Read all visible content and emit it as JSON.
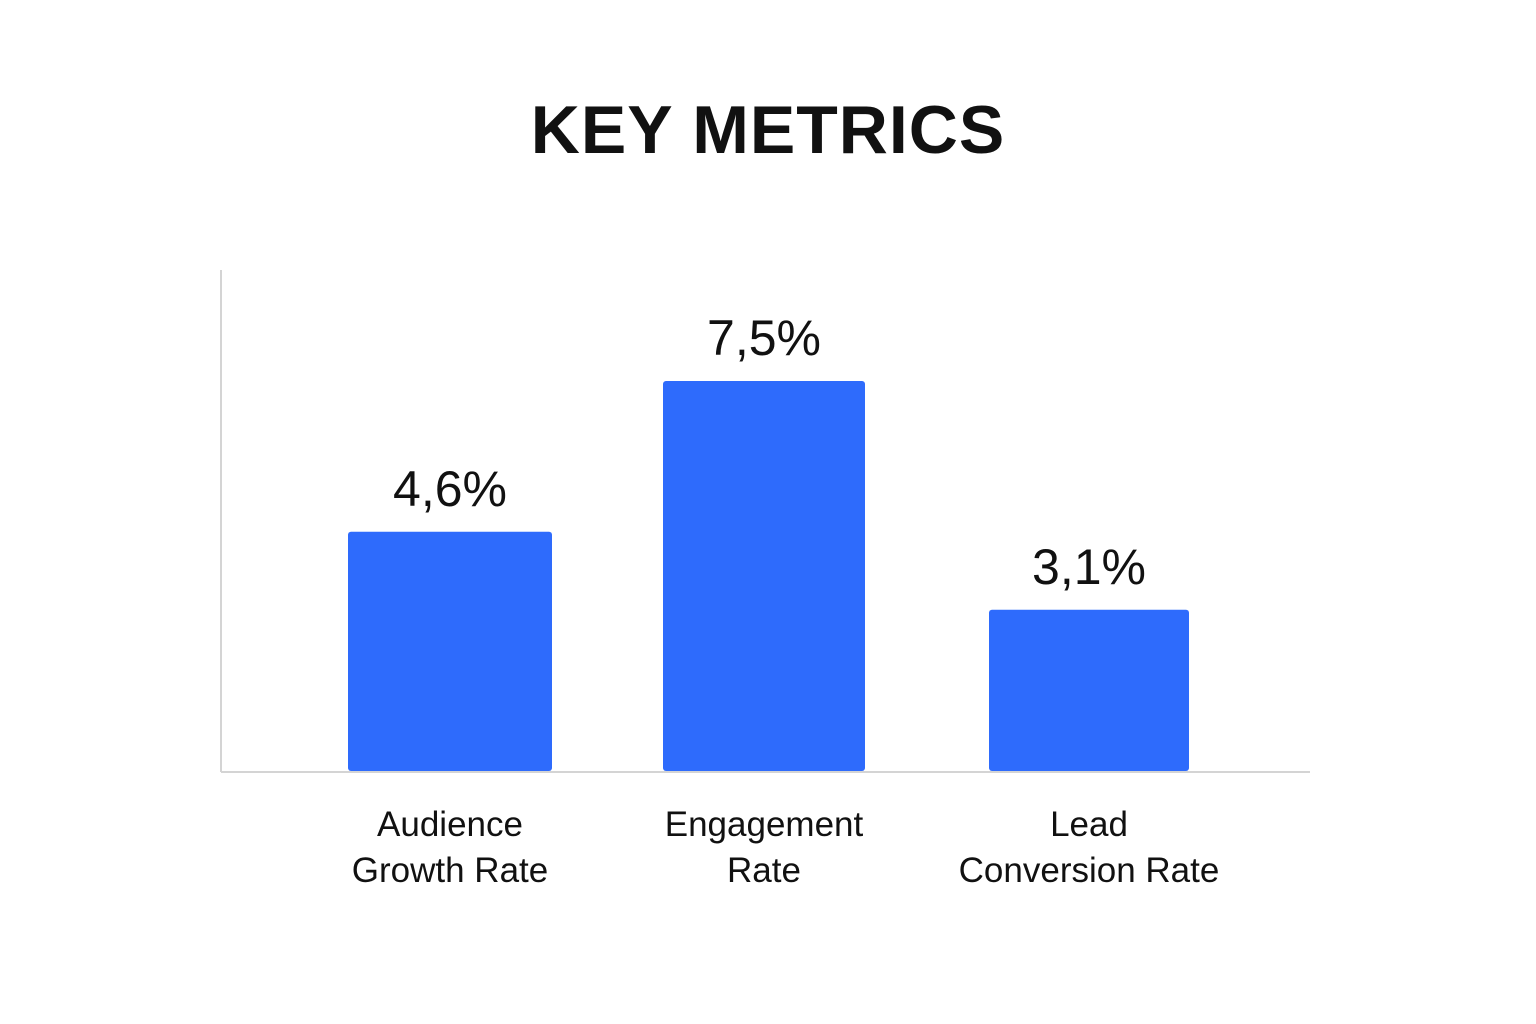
{
  "chart_data": {
    "type": "bar",
    "title": "KEY METRICS",
    "categories": [
      [
        "Audience",
        "Growth Rate"
      ],
      [
        "Engagement",
        "Rate"
      ],
      [
        "Lead",
        "Conversion Rate"
      ]
    ],
    "values": [
      4.6,
      7.5,
      3.1
    ],
    "value_labels": [
      "4,6%",
      "7,5%",
      "3,1%"
    ],
    "xlabel": "",
    "ylabel": "",
    "unit": "%",
    "grid": false,
    "legend": "none",
    "bar_color": "#2e6bfc",
    "axis_color": "#d4d4d4"
  }
}
